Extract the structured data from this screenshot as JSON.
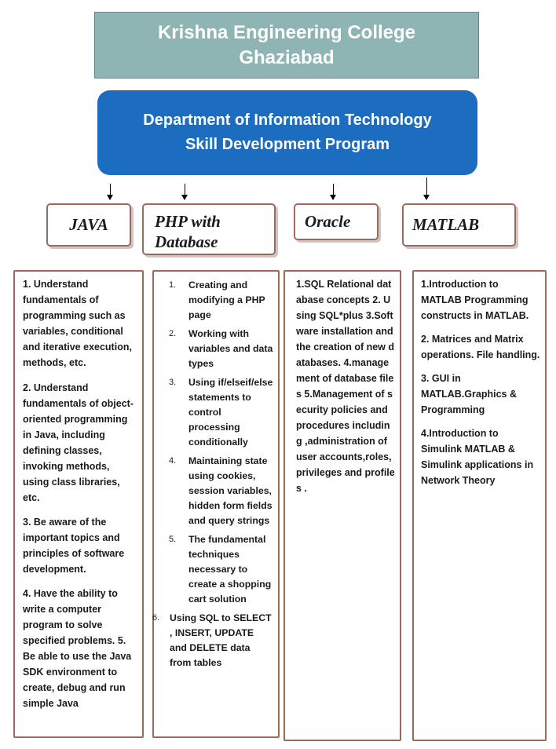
{
  "header": {
    "college_line1": "Krishna Engineering College",
    "college_line2": "Ghaziabad",
    "dept_line1": "Department of Information Technology",
    "dept_line2": "Skill Development Program"
  },
  "courses": [
    {
      "title": "JAVA",
      "items": [
        "1. Understand fundamentals of programming such as variables, conditional and iterative execution, methods, etc.",
        "2. Understand fundamentals of object-oriented programming in Java, including defining classes, invoking methods, using class libraries, etc.",
        "3. Be aware of the important topics and principles of software development.",
        "4. Have the ability to write a computer program to solve specified problems. 5. Be able to use the Java SDK environment to create, debug and run simple Java"
      ]
    },
    {
      "title_line1": "PHP with",
      "title_line2": "Database",
      "items": [
        {
          "num": "1.",
          "text": "Creating and modifying a PHP page"
        },
        {
          "num": "2.",
          "text": "Working with variables and data types"
        },
        {
          "num": "3.",
          "text": "Using if/elseif/else statements to control processing conditionally"
        },
        {
          "num": "4.",
          "text": "Maintaining state using cookies, session variables, hidden form fields and query strings"
        },
        {
          "num": "5.",
          "text": "The fundamental techniques necessary to create a shopping cart solution"
        },
        {
          "num": "6.",
          "text": "Using SQL to SELECT , INSERT, UPDATE and DELETE data from tables"
        }
      ]
    },
    {
      "title": "Oracle",
      "text": "1.SQL Relational database concepts 2. Using SQL*plus 3.Software installation and the creation of new databases. 4.management of database files 5.Management of security policies and procedures including ,administration of user accounts,roles,privileges and profiles ."
    },
    {
      "title": "MATLAB",
      "items": [
        "1.Introduction to MATLAB Programming constructs in MATLAB.",
        "2. Matrices and Matrix operations. File handling.",
        "3. GUI in MATLAB.Graphics & Programming",
        "4.Introduction to Simulink MATLAB & Simulink applications in Network Theory"
      ]
    }
  ]
}
